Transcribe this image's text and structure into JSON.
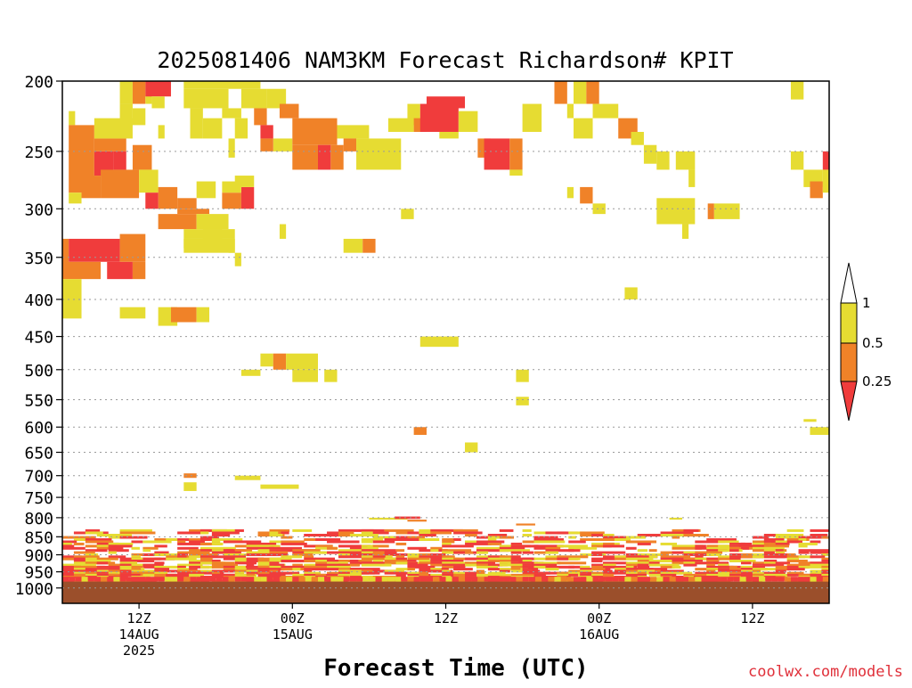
{
  "credit": "coolwx.com/models",
  "chart_data": {
    "type": "heatmap",
    "title": "2025081406 NAM3KM Forecast Richardson# KPIT",
    "xlabel": "Forecast Time (UTC)",
    "ylabel": "",
    "x_range_hours": [
      0,
      60
    ],
    "y_range_hpa": [
      200,
      1050
    ],
    "y_scale": "log",
    "y_ticks": [
      200,
      250,
      300,
      350,
      400,
      450,
      500,
      550,
      600,
      650,
      700,
      750,
      800,
      850,
      900,
      950,
      1000
    ],
    "x_ticks": [
      {
        "hour": 6,
        "lines": [
          "12Z",
          "14AUG",
          "2025"
        ]
      },
      {
        "hour": 18,
        "lines": [
          "00Z",
          "15AUG"
        ]
      },
      {
        "hour": 30,
        "lines": [
          "12Z"
        ]
      },
      {
        "hour": 42,
        "lines": [
          "00Z",
          "16AUG"
        ]
      },
      {
        "hour": 54,
        "lines": [
          "12Z"
        ]
      }
    ],
    "grid": "dotted horizontal",
    "below_ground_color": "#9b4f2b",
    "below_ground_from_hpa": 980,
    "colorbar": {
      "placement": "right",
      "levels": [
        {
          "label": "1",
          "color": "#ffffff"
        },
        {
          "label": "0.5",
          "color": "#e6dc32"
        },
        {
          "label": "0.25",
          "color": "#f08228"
        },
        {
          "label": "",
          "color": "#f03c3c"
        }
      ],
      "tick_labels": [
        "1",
        "0.5",
        "0.25"
      ]
    },
    "classes": {
      "1": {
        "range": "0.5-1",
        "color": "#e6dc32"
      },
      "2": {
        "range": "0.25-0.5",
        "color": "#f08228"
      },
      "3": {
        "range": "<0.25",
        "color": "#f03c3c"
      }
    },
    "cells": [
      [
        0.5,
        1.0,
        220,
        230,
        1
      ],
      [
        0.5,
        2.5,
        230,
        285,
        2
      ],
      [
        0.5,
        1.5,
        285,
        295,
        1
      ],
      [
        2.5,
        4.0,
        250,
        270,
        3
      ],
      [
        2.5,
        5.0,
        240,
        250,
        2
      ],
      [
        4.0,
        5.0,
        250,
        265,
        3
      ],
      [
        1.5,
        3.0,
        270,
        290,
        2
      ],
      [
        3.0,
        6.0,
        265,
        290,
        2
      ],
      [
        5.5,
        7.0,
        245,
        265,
        2
      ],
      [
        6.0,
        7.5,
        265,
        285,
        1
      ],
      [
        2.5,
        5.5,
        225,
        240,
        1
      ],
      [
        4.5,
        5.5,
        215,
        230,
        1
      ],
      [
        4.5,
        5.5,
        200,
        215,
        1
      ],
      [
        5.5,
        6.5,
        200,
        215,
        2
      ],
      [
        6.5,
        7.0,
        200,
        215,
        1
      ],
      [
        6.5,
        8.5,
        200,
        210,
        3
      ],
      [
        7.0,
        8.0,
        210,
        218,
        1
      ],
      [
        5.5,
        6.5,
        218,
        230,
        1
      ],
      [
        7.5,
        8.0,
        230,
        240,
        1
      ],
      [
        7.5,
        9.0,
        280,
        300,
        2
      ],
      [
        6.5,
        7.5,
        285,
        300,
        3
      ],
      [
        9.0,
        11.5,
        300,
        305,
        2
      ],
      [
        9.0,
        10.5,
        290,
        300,
        2
      ],
      [
        10.5,
        12.0,
        275,
        290,
        1
      ],
      [
        7.5,
        10.5,
        305,
        320,
        2
      ],
      [
        10.5,
        13.0,
        305,
        320,
        1
      ],
      [
        12.5,
        14.0,
        285,
        300,
        2
      ],
      [
        14.0,
        15.0,
        280,
        300,
        3
      ],
      [
        13.5,
        15.0,
        270,
        280,
        1
      ],
      [
        12.5,
        14.0,
        275,
        285,
        1
      ],
      [
        9.5,
        13.5,
        320,
        330,
        1
      ],
      [
        9.5,
        13.5,
        330,
        345,
        1
      ],
      [
        13.5,
        14.0,
        345,
        360,
        1
      ],
      [
        13.0,
        13.5,
        330,
        345,
        1
      ],
      [
        11.0,
        12.5,
        320,
        340,
        1
      ],
      [
        9.5,
        10.0,
        330,
        340,
        1
      ],
      [
        9.5,
        15.5,
        200,
        205,
        1
      ],
      [
        9.5,
        13.0,
        205,
        218,
        1
      ],
      [
        10.0,
        11.0,
        218,
        240,
        1
      ],
      [
        11.0,
        12.5,
        225,
        240,
        1
      ],
      [
        12.5,
        14.0,
        218,
        225,
        1
      ],
      [
        13.5,
        14.5,
        225,
        240,
        1
      ],
      [
        13.0,
        13.5,
        240,
        255,
        1
      ],
      [
        14.0,
        16.0,
        205,
        218,
        1
      ],
      [
        15.0,
        16.0,
        218,
        230,
        2
      ],
      [
        15.5,
        16.5,
        230,
        240,
        3
      ],
      [
        16.0,
        17.5,
        205,
        218,
        1
      ],
      [
        17.0,
        18.5,
        215,
        225,
        2
      ],
      [
        16.5,
        18.0,
        240,
        250,
        1
      ],
      [
        15.5,
        16.5,
        240,
        250,
        2
      ],
      [
        18.0,
        21.5,
        225,
        245,
        2
      ],
      [
        18.0,
        20.0,
        245,
        265,
        2
      ],
      [
        20.0,
        21.0,
        245,
        265,
        3
      ],
      [
        21.0,
        22.0,
        245,
        265,
        2
      ],
      [
        21.5,
        24.0,
        230,
        240,
        1
      ],
      [
        22.0,
        23.0,
        240,
        250,
        2
      ],
      [
        23.0,
        26.5,
        240,
        265,
        1
      ],
      [
        25.5,
        27.5,
        225,
        235,
        1
      ],
      [
        27.0,
        28.0,
        215,
        230,
        1
      ],
      [
        27.5,
        28.5,
        225,
        235,
        2
      ],
      [
        28.0,
        31.0,
        215,
        235,
        3
      ],
      [
        28.5,
        31.5,
        210,
        218,
        3
      ],
      [
        29.5,
        31.0,
        235,
        240,
        1
      ],
      [
        31.0,
        32.5,
        220,
        235,
        1
      ],
      [
        32.5,
        33.5,
        240,
        255,
        2
      ],
      [
        33.0,
        35.0,
        240,
        265,
        3
      ],
      [
        35.0,
        36.0,
        240,
        265,
        2
      ],
      [
        36.0,
        37.5,
        215,
        235,
        1
      ],
      [
        35.0,
        36.0,
        265,
        270,
        1
      ],
      [
        17.0,
        17.5,
        315,
        330,
        1
      ],
      [
        22.0,
        23.5,
        330,
        345,
        1
      ],
      [
        23.5,
        24.5,
        330,
        345,
        2
      ],
      [
        26.5,
        27.5,
        300,
        310,
        1
      ],
      [
        0.0,
        0.5,
        330,
        370,
        2
      ],
      [
        0.5,
        4.5,
        330,
        355,
        3
      ],
      [
        0.0,
        3.0,
        355,
        375,
        2
      ],
      [
        3.5,
        5.5,
        355,
        375,
        3
      ],
      [
        4.5,
        6.5,
        325,
        355,
        2
      ],
      [
        5.5,
        6.5,
        355,
        375,
        2
      ],
      [
        0.0,
        1.5,
        375,
        425,
        1
      ],
      [
        4.5,
        6.5,
        410,
        425,
        1
      ],
      [
        7.5,
        9.0,
        410,
        435,
        1
      ],
      [
        8.5,
        10.5,
        410,
        430,
        2
      ],
      [
        10.5,
        11.5,
        410,
        430,
        1
      ],
      [
        14.0,
        15.5,
        500,
        510,
        1
      ],
      [
        15.5,
        16.5,
        475,
        495,
        1
      ],
      [
        16.5,
        17.5,
        475,
        500,
        2
      ],
      [
        17.5,
        20.0,
        475,
        500,
        1
      ],
      [
        18.0,
        20.0,
        500,
        520,
        1
      ],
      [
        20.5,
        21.5,
        500,
        520,
        1
      ],
      [
        28.0,
        31.0,
        450,
        465,
        1
      ],
      [
        35.5,
        36.5,
        500,
        520,
        1
      ],
      [
        35.5,
        36.5,
        545,
        560,
        1
      ],
      [
        31.5,
        32.5,
        630,
        650,
        1
      ],
      [
        27.5,
        28.5,
        600,
        615,
        2
      ],
      [
        38.5,
        39.5,
        200,
        215,
        2
      ],
      [
        39.5,
        40.0,
        215,
        225,
        1
      ],
      [
        40.0,
        41.0,
        200,
        215,
        1
      ],
      [
        41.0,
        42.0,
        200,
        215,
        2
      ],
      [
        41.5,
        43.5,
        215,
        225,
        1
      ],
      [
        40.0,
        41.5,
        225,
        240,
        1
      ],
      [
        43.5,
        45.0,
        225,
        240,
        2
      ],
      [
        44.5,
        45.5,
        235,
        245,
        1
      ],
      [
        45.5,
        46.5,
        245,
        260,
        1
      ],
      [
        46.5,
        47.5,
        250,
        265,
        1
      ],
      [
        48.0,
        49.5,
        250,
        265,
        1
      ],
      [
        49.0,
        49.5,
        265,
        280,
        1
      ],
      [
        39.5,
        40.0,
        280,
        290,
        1
      ],
      [
        40.5,
        41.5,
        280,
        295,
        2
      ],
      [
        41.5,
        42.5,
        295,
        305,
        1
      ],
      [
        46.5,
        49.5,
        290,
        315,
        1
      ],
      [
        48.5,
        49.0,
        315,
        330,
        1
      ],
      [
        50.5,
        51.0,
        295,
        310,
        2
      ],
      [
        51.0,
        53.0,
        295,
        310,
        1
      ],
      [
        44.0,
        45.0,
        385,
        400,
        1
      ],
      [
        57.0,
        58.0,
        200,
        212,
        1
      ],
      [
        57.0,
        58.0,
        250,
        265,
        1
      ],
      [
        58.0,
        59.5,
        265,
        280,
        1
      ],
      [
        58.5,
        59.5,
        275,
        290,
        2
      ],
      [
        59.5,
        60.0,
        250,
        265,
        3
      ],
      [
        59.5,
        60.0,
        265,
        285,
        1
      ],
      [
        58.0,
        59.0,
        585,
        590,
        1
      ],
      [
        58.5,
        60.0,
        600,
        615,
        1
      ],
      [
        9.5,
        10.5,
        695,
        705,
        2
      ],
      [
        9.5,
        10.5,
        715,
        735,
        1
      ],
      [
        13.5,
        15.5,
        700,
        710,
        1
      ],
      [
        15.5,
        18.5,
        720,
        730,
        1
      ],
      [
        24.0,
        27.0,
        800,
        805,
        1
      ],
      [
        26.0,
        28.0,
        797,
        803,
        3
      ],
      [
        27.0,
        28.5,
        805,
        810,
        2
      ],
      [
        35.5,
        37.0,
        815,
        820,
        2
      ],
      [
        47.5,
        48.5,
        800,
        805,
        1
      ]
    ],
    "boundary_layer": {
      "top_hpa": 830,
      "bottom_hpa": 980,
      "class_sequence": [
        3,
        1,
        2,
        3,
        1,
        3,
        2,
        1,
        3,
        3,
        2,
        1,
        3,
        2,
        3,
        1,
        2,
        3,
        1,
        3
      ]
    }
  }
}
